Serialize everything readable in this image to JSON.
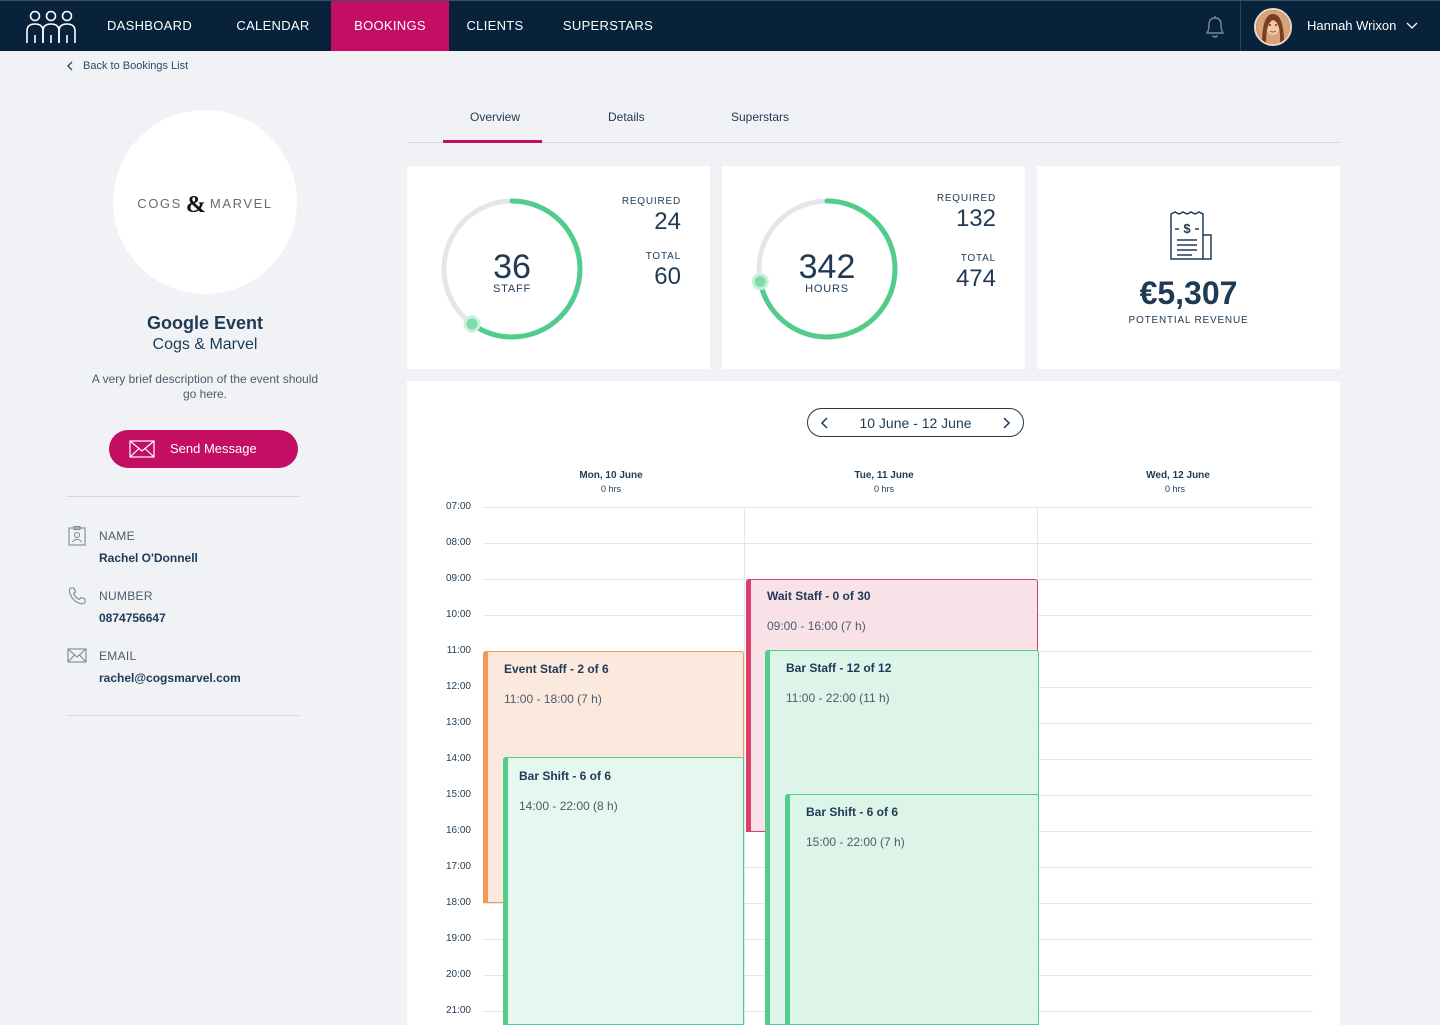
{
  "nav": {
    "items": [
      "DASHBOARD",
      "CALENDAR",
      "BOOKINGS",
      "CLIENTS",
      "SUPERSTARS"
    ],
    "active": "BOOKINGS",
    "user_name": "Hannah Wrixon"
  },
  "back_link": "Back to Bookings List",
  "client": {
    "logo_left": "COGS",
    "logo_amp": "&",
    "logo_right": "MARVEL",
    "event_title": "Google Event",
    "client_name": "Cogs & Marvel",
    "description": "A very brief description of the event should go here.",
    "send_message": "Send Message"
  },
  "contact": {
    "name_label": "NAME",
    "name": "Rachel O'Donnell",
    "number_label": "NUMBER",
    "number": "0874756647",
    "email_label": "EMAIL",
    "email": "rachel@cogsmarvel.com"
  },
  "tabs": [
    "Overview",
    "Details",
    "Superstars"
  ],
  "active_tab": "Overview",
  "stats": {
    "staff": {
      "value": "36",
      "unit": "STAFF",
      "required_label": "REQUIRED",
      "required": "24",
      "total_label": "TOTAL",
      "total": "60",
      "fraction": 0.6
    },
    "hours": {
      "value": "342",
      "unit": "HOURS",
      "required_label": "REQUIRED",
      "required": "132",
      "total_label": "TOTAL",
      "total": "474",
      "fraction": 0.72
    },
    "revenue": {
      "value": "€5,307",
      "label": "POTENTIAL REVENUE"
    }
  },
  "calendar": {
    "range_label": "10 June - 12 June",
    "days": [
      {
        "name": "Mon, 10 June",
        "hours": "0 hrs"
      },
      {
        "name": "Tue, 11 June",
        "hours": "0 hrs"
      },
      {
        "name": "Wed, 12 June",
        "hours": "0 hrs"
      }
    ],
    "hours": [
      "07:00",
      "08:00",
      "09:00",
      "10:00",
      "11:00",
      "12:00",
      "13:00",
      "14:00",
      "15:00",
      "16:00",
      "17:00",
      "18:00",
      "19:00",
      "20:00",
      "21:00"
    ],
    "shifts": [
      {
        "title": "Event Staff - 2 of 6",
        "time": "11:00 - 18:00 (7 h)"
      },
      {
        "title": "Bar Shift - 6 of 6",
        "time": "14:00 - 22:00 (8 h)"
      },
      {
        "title": "Wait Staff - 0 of 30",
        "time": "09:00 - 16:00 (7 h)"
      },
      {
        "title": "Bar Staff - 12 of 12",
        "time": "11:00 - 22:00 (11 h)"
      },
      {
        "title": "Bar Shift - 6 of 6",
        "time": "15:00 - 22:00 (7 h)"
      }
    ]
  },
  "colors": {
    "nav_bg": "#07223a",
    "accent": "#c40e63",
    "progress": "#52cc8a",
    "text": "#1e3a55"
  }
}
